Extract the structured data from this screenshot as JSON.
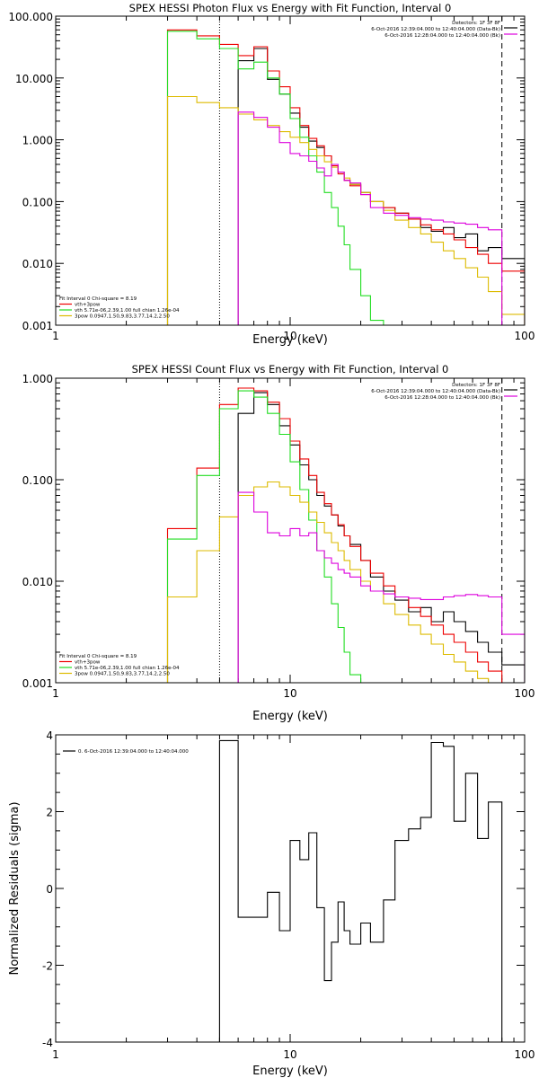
{
  "chart_data": [
    {
      "type": "line",
      "title": "SPEX HESSI Photon Flux vs Energy with Fit Function, Interval 0",
      "xlabel": "Energy (keV)",
      "ylabel": "",
      "xscale": "log",
      "yscale": "log",
      "xlim": [
        1,
        100
      ],
      "ylim": [
        0.001,
        100
      ],
      "xticks": [
        "1",
        "10",
        "100"
      ],
      "yticks": [
        "0.001",
        "0.010",
        "0.100",
        "1.000",
        "10.000",
        "100.000"
      ],
      "energy_edges": [
        3,
        4,
        5,
        6,
        7,
        8,
        9,
        10,
        11,
        12,
        13,
        14,
        15,
        16,
        17,
        18,
        20,
        22,
        25,
        28,
        32,
        36,
        40,
        45,
        50,
        56,
        63,
        70,
        80,
        100
      ],
      "series": [
        {
          "name": "Data",
          "color": "#000000",
          "values": [
            null,
            null,
            null,
            19,
            30,
            9.5,
            5.5,
            2.7,
            1.6,
            0.95,
            0.75,
            0.55,
            0.38,
            0.3,
            0.22,
            0.19,
            0.14,
            0.1,
            0.08,
            0.065,
            0.052,
            0.038,
            0.033,
            0.038,
            0.026,
            0.03,
            0.016,
            0.018,
            0.012
          ]
        },
        {
          "name": "vth+3pow",
          "color": "#ee0000",
          "values": [
            60,
            48,
            35,
            23,
            32,
            13,
            7.2,
            3.3,
            1.7,
            1.05,
            0.8,
            0.55,
            0.38,
            0.28,
            0.22,
            0.18,
            0.13,
            0.1,
            0.08,
            0.065,
            0.052,
            0.042,
            0.035,
            0.03,
            0.024,
            0.018,
            0.014,
            0.01,
            0.0075
          ]
        },
        {
          "name": "vth 5.71e-06,2.39,1.00  full chian 1.26e-04",
          "color": "#22dd22",
          "values": [
            57,
            43,
            30,
            14,
            18,
            10,
            5.5,
            2.2,
            1.1,
            0.55,
            0.3,
            0.14,
            0.08,
            0.04,
            0.02,
            0.008,
            0.003,
            0.0012,
            null,
            null,
            null,
            null,
            null,
            null,
            null,
            null,
            null,
            null,
            null
          ]
        },
        {
          "name": "3pow 0.0947,1.50,9.83,3.77,14.2,2.50",
          "color": "#ddbb00",
          "values": [
            5,
            4,
            3.3,
            2.6,
            2.1,
            1.7,
            1.35,
            1.1,
            0.9,
            0.7,
            0.55,
            0.44,
            0.36,
            0.3,
            0.24,
            0.19,
            0.14,
            0.1,
            0.072,
            0.05,
            0.038,
            0.03,
            0.022,
            0.016,
            0.012,
            0.0085,
            0.006,
            0.0035,
            0.0015
          ]
        },
        {
          "name": "Bk",
          "color": "#dd00dd",
          "values": [
            null,
            null,
            null,
            2.8,
            2.3,
            1.6,
            0.9,
            0.6,
            0.55,
            0.45,
            0.35,
            0.26,
            0.4,
            0.3,
            0.22,
            0.2,
            0.13,
            0.08,
            0.065,
            0.06,
            0.055,
            0.052,
            0.05,
            0.047,
            0.045,
            0.043,
            0.038,
            0.035,
            0.001
          ]
        }
      ],
      "markers": [
        {
          "style": "dotted",
          "x": 5
        },
        {
          "style": "dashed",
          "x": 80
        }
      ],
      "info_text": [
        "Detectors: 1F 3F 8F",
        "6-Oct-2016 12:39:04.000 to 12:40:04.000 (Data-Bk)",
        "6-Oct-2016 12:28:04.000 to 12:40:04.000 (Bk)"
      ],
      "fit_text": "Fit Interval 0   Chi-square = 8.19",
      "legend_position": "top-right"
    },
    {
      "type": "line",
      "title": "SPEX HESSI Count Flux vs Energy with Fit Function, Interval 0",
      "xlabel": "Energy (keV)",
      "ylabel": "",
      "xscale": "log",
      "yscale": "log",
      "xlim": [
        1,
        100
      ],
      "ylim": [
        0.001,
        1
      ],
      "xticks": [
        "1",
        "10",
        "100"
      ],
      "yticks": [
        "0.001",
        "0.010",
        "0.100",
        "1.000"
      ],
      "energy_edges": [
        3,
        4,
        5,
        6,
        7,
        8,
        9,
        10,
        11,
        12,
        13,
        14,
        15,
        16,
        17,
        18,
        20,
        22,
        25,
        28,
        32,
        36,
        40,
        45,
        50,
        56,
        63,
        70,
        80,
        100
      ],
      "series": [
        {
          "name": "Data",
          "color": "#000000",
          "values": [
            null,
            null,
            null,
            0.45,
            0.72,
            0.55,
            0.34,
            0.22,
            0.14,
            0.1,
            0.07,
            0.055,
            0.045,
            0.035,
            0.028,
            0.023,
            0.016,
            0.011,
            0.008,
            0.0065,
            0.005,
            0.0055,
            0.004,
            0.005,
            0.004,
            0.0032,
            0.0025,
            0.002,
            0.0015
          ]
        },
        {
          "name": "vth+3pow",
          "color": "#ee0000",
          "values": [
            0.033,
            0.13,
            0.55,
            0.8,
            0.75,
            0.58,
            0.4,
            0.24,
            0.16,
            0.11,
            0.075,
            0.058,
            0.045,
            0.036,
            0.028,
            0.022,
            0.016,
            0.012,
            0.009,
            0.007,
            0.0055,
            0.0045,
            0.0037,
            0.003,
            0.0025,
            0.002,
            0.0016,
            0.0013,
            null
          ]
        },
        {
          "name": "vth 5.71e-06,2.39,1.00  full chian 1.26e-04",
          "color": "#22dd22",
          "values": [
            0.026,
            0.11,
            0.5,
            0.75,
            0.65,
            0.45,
            0.28,
            0.15,
            0.08,
            0.04,
            0.02,
            0.011,
            0.006,
            0.0035,
            0.002,
            0.0012,
            null,
            null,
            null,
            null,
            null,
            null,
            null,
            null,
            null,
            null,
            null,
            null,
            null
          ]
        },
        {
          "name": "3pow 0.0947,1.50,9.83,3.77,14.2,2.50",
          "color": "#ddbb00",
          "values": [
            0.007,
            0.02,
            0.043,
            0.07,
            0.085,
            0.095,
            0.085,
            0.07,
            0.06,
            0.048,
            0.038,
            0.03,
            0.024,
            0.02,
            0.016,
            0.013,
            0.01,
            0.008,
            0.006,
            0.0047,
            0.0037,
            0.003,
            0.0024,
            0.0019,
            0.0016,
            0.0013,
            0.0011,
            0.001,
            null
          ]
        },
        {
          "name": "Bk",
          "color": "#dd00dd",
          "values": [
            null,
            null,
            null,
            0.075,
            0.048,
            0.03,
            0.028,
            0.033,
            0.028,
            0.03,
            0.02,
            0.017,
            0.015,
            0.013,
            0.012,
            0.011,
            0.009,
            0.008,
            0.0075,
            0.007,
            0.0068,
            0.0066,
            0.0066,
            0.007,
            0.0072,
            0.0074,
            0.0072,
            0.007,
            0.003
          ]
        }
      ],
      "markers": [
        {
          "style": "dotted",
          "x": 5
        },
        {
          "style": "dashed",
          "x": 80
        }
      ],
      "info_text": [
        "Detectors: 1F 3F 8F",
        "6-Oct-2016 12:39:04.000 to 12:40:04.000 (Data-Bk)",
        "6-Oct-2016 12:28:04.000 to 12:40:04.000 (Bk)"
      ],
      "fit_text": "Fit Interval 0   Chi-square = 8.19",
      "legend_position": "top-right"
    },
    {
      "type": "line",
      "title": "",
      "xlabel": "Energy (keV)",
      "ylabel": "Normalized Residuals (sigma)",
      "xscale": "log",
      "xlim": [
        1,
        100
      ],
      "ylim": [
        -4,
        4
      ],
      "xticks": [
        "1",
        "10",
        "100"
      ],
      "yticks": [
        "-4",
        "-2",
        "0",
        "2",
        "4"
      ],
      "energy_edges": [
        5,
        6,
        7,
        8,
        9,
        10,
        11,
        12,
        13,
        14,
        15,
        16,
        17,
        18,
        20,
        22,
        25,
        28,
        32,
        36,
        40,
        45,
        50,
        56,
        63,
        70,
        80
      ],
      "series": [
        {
          "name": "0.  6-Oct-2016 12:39:04.000 to 12:40:04.000",
          "color": "#000000",
          "values": [
            3.85,
            -0.75,
            -0.75,
            -0.1,
            -1.1,
            1.25,
            0.75,
            1.45,
            -0.5,
            -2.4,
            -1.4,
            -0.35,
            -1.1,
            -1.45,
            -0.9,
            -1.4,
            -0.3,
            1.25,
            1.55,
            1.85,
            3.8,
            3.7,
            1.75,
            3.0,
            1.3,
            2.25
          ]
        }
      ],
      "legend_position": "top-left"
    }
  ]
}
